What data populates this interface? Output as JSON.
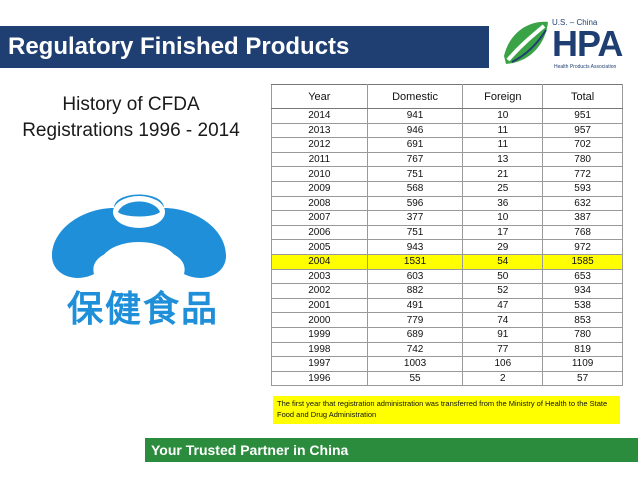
{
  "header": {
    "title": "Regulatory Finished Products"
  },
  "logo": {
    "top_text": "U.S. – China",
    "word": "HPA",
    "sub_text": "Health Products Association"
  },
  "subtitle": {
    "line1": "History of CFDA",
    "line2": "Registrations 1996 - 2014"
  },
  "emblem": {
    "chars": "保健食品",
    "icon": "cfda-health-food-emblem-icon"
  },
  "table": {
    "headers": [
      "Year",
      "Domestic",
      "Foreign",
      "Total"
    ],
    "rows": [
      [
        "2014",
        "941",
        "10",
        "951"
      ],
      [
        "2013",
        "946",
        "11",
        "957"
      ],
      [
        "2012",
        "691",
        "11",
        "702"
      ],
      [
        "2011",
        "767",
        "13",
        "780"
      ],
      [
        "2010",
        "751",
        "21",
        "772"
      ],
      [
        "2009",
        "568",
        "25",
        "593"
      ],
      [
        "2008",
        "596",
        "36",
        "632"
      ],
      [
        "2007",
        "377",
        "10",
        "387"
      ],
      [
        "2006",
        "751",
        "17",
        "768"
      ],
      [
        "2005",
        "943",
        "29",
        "972"
      ],
      [
        "2004",
        "1531",
        "54",
        "1585"
      ],
      [
        "2003",
        "603",
        "50",
        "653"
      ],
      [
        "2002",
        "882",
        "52",
        "934"
      ],
      [
        "2001",
        "491",
        "47",
        "538"
      ],
      [
        "2000",
        "779",
        "74",
        "853"
      ],
      [
        "1999",
        "689",
        "91",
        "780"
      ],
      [
        "1998",
        "742",
        "77",
        "819"
      ],
      [
        "1997",
        "1003",
        "106",
        "1109"
      ],
      [
        "1996",
        "55",
        "2",
        "57"
      ]
    ],
    "highlight_row_index": 10,
    "highlight_color": "#ffff00"
  },
  "note": "The first year that registration administration was transferred from the Ministry of Health to the State Food and Drug Administration",
  "footer": {
    "text": "Your Trusted Partner in China"
  },
  "colors": {
    "title_bar": "#1f3f73",
    "footer_bar": "#2b8c3e",
    "emblem_blue": "#1e8fd8",
    "logo_green": "#3aa346"
  }
}
